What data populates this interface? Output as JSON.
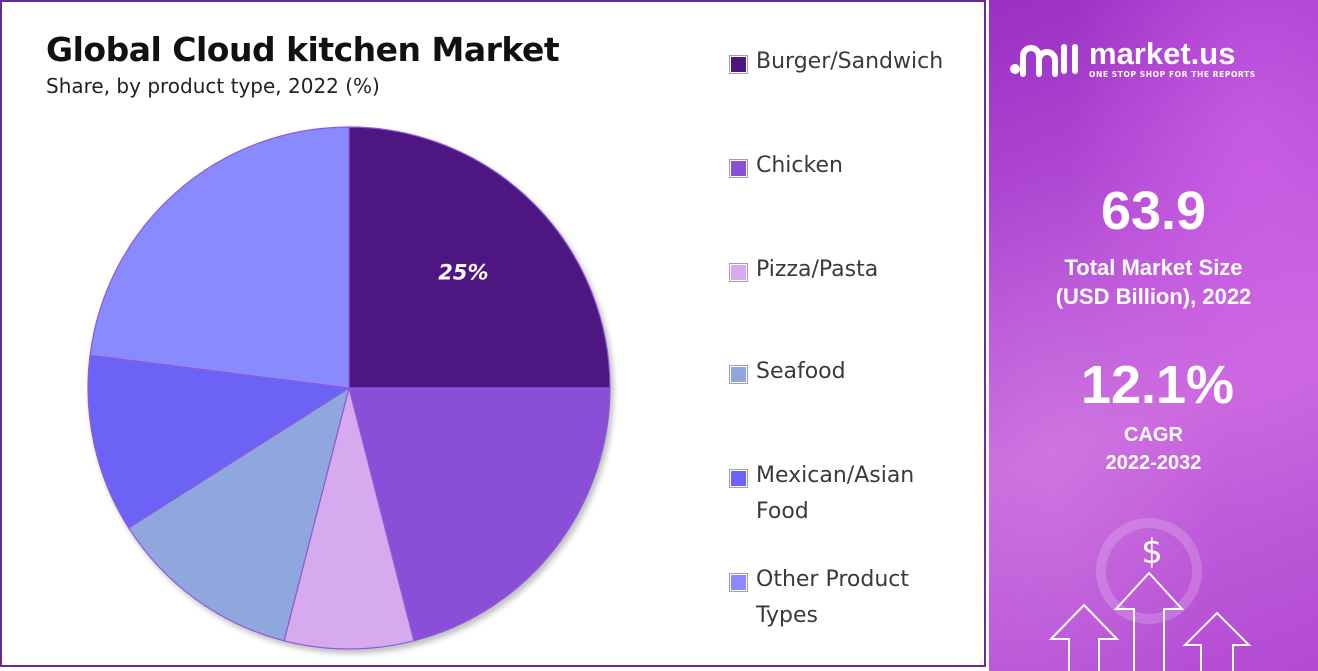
{
  "chart_data": {
    "type": "pie",
    "title": "Global Cloud kitchen Market",
    "subtitle": "Share, by product type, 2022 (%)",
    "categories": [
      "Burger/Sandwich",
      "Chicken",
      "Pizza/Pasta",
      "Seafood",
      "Mexican/Asian Food",
      "Other Product Types"
    ],
    "values": [
      25,
      21,
      8,
      12,
      11,
      23
    ],
    "data_labels": [
      "25%",
      "",
      "",
      "",
      "",
      ""
    ],
    "colors": [
      "#4e1580",
      "#8a4fd6",
      "#d6aaef",
      "#8fa6df",
      "#6c64f6",
      "#8a8aff"
    ],
    "start_angle": "12 o'clock",
    "direction": "clockwise",
    "legend_position": "right"
  },
  "legend": [
    {
      "label": "Burger/Sandwich",
      "color": "#4e1580"
    },
    {
      "label": "Chicken",
      "color": "#8a4fd6"
    },
    {
      "label": "Pizza/Pasta",
      "color": "#d6aaef"
    },
    {
      "label": "Seafood",
      "color": "#8fa6df"
    },
    {
      "label": "Mexican/Asian\nFood",
      "color": "#6c64f6"
    },
    {
      "label": "Other Product\nTypes",
      "color": "#8a8aff"
    }
  ],
  "sidebar": {
    "brand_name": "market.us",
    "brand_tagline": "ONE STOP SHOP FOR THE REPORTS",
    "market_size_value": "63.9",
    "market_size_label_line1": "Total Market Size",
    "market_size_label_line2": "(USD Billion), 2022",
    "cagr_value": "12.1%",
    "cagr_label_line1": "CAGR",
    "cagr_label_line2": "2022-2032",
    "dollar_symbol": "$",
    "logo_icon": "market-us-logo-icon",
    "decoration_icon": "growth-arrows-icon"
  }
}
